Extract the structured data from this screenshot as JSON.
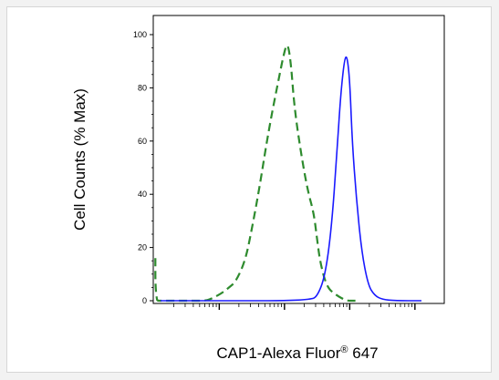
{
  "chart_data": {
    "type": "line",
    "title": "",
    "xlabel": "CAP1-Alexa Fluor",
    "xlabel_sup": "®",
    "xlabel_suffix": " 647",
    "ylabel": "Cell Counts (% Max)",
    "ylim": [
      0,
      105
    ],
    "yticks": [
      0,
      20,
      40,
      60,
      80,
      100
    ],
    "x_scale": "log",
    "xlim_log10": [
      0.1,
      4.1
    ],
    "x_major_log10": [
      1,
      2,
      3,
      4
    ],
    "grid": false,
    "legend": "none",
    "series": [
      {
        "style": "dashed",
        "color": "#2e8b2e",
        "x_log10": [
          0.02,
          0.02,
          0.04,
          0.05,
          0.1,
          0.3,
          0.45,
          0.6,
          0.8,
          0.9,
          1.05,
          1.15,
          1.25,
          1.4,
          1.5,
          1.62,
          1.75,
          1.9,
          2.0,
          2.05,
          2.1,
          2.15,
          2.25,
          2.35,
          2.45,
          2.5,
          2.55,
          2.65,
          2.8,
          2.95,
          3.05,
          3.12
        ],
        "values": [
          16,
          6,
          1,
          0,
          0,
          0,
          0,
          0,
          0,
          1,
          3,
          5,
          7,
          15,
          27,
          43,
          63,
          82,
          94,
          97,
          89,
          73,
          56,
          42,
          33,
          23,
          14,
          5,
          2,
          0,
          0,
          0
        ]
      },
      {
        "style": "solid",
        "color": "#1a1aff",
        "x_log10": [
          0.1,
          1.5,
          2.0,
          2.4,
          2.5,
          2.62,
          2.72,
          2.8,
          2.86,
          2.92,
          2.96,
          3.0,
          3.04,
          3.1,
          3.18,
          3.28,
          3.38,
          3.5,
          3.7,
          4.1
        ],
        "values": [
          0,
          0,
          0,
          0.5,
          1.5,
          9,
          27,
          54,
          77,
          91,
          92,
          83,
          59,
          39,
          19,
          6,
          2,
          0.5,
          0,
          0
        ]
      }
    ]
  }
}
